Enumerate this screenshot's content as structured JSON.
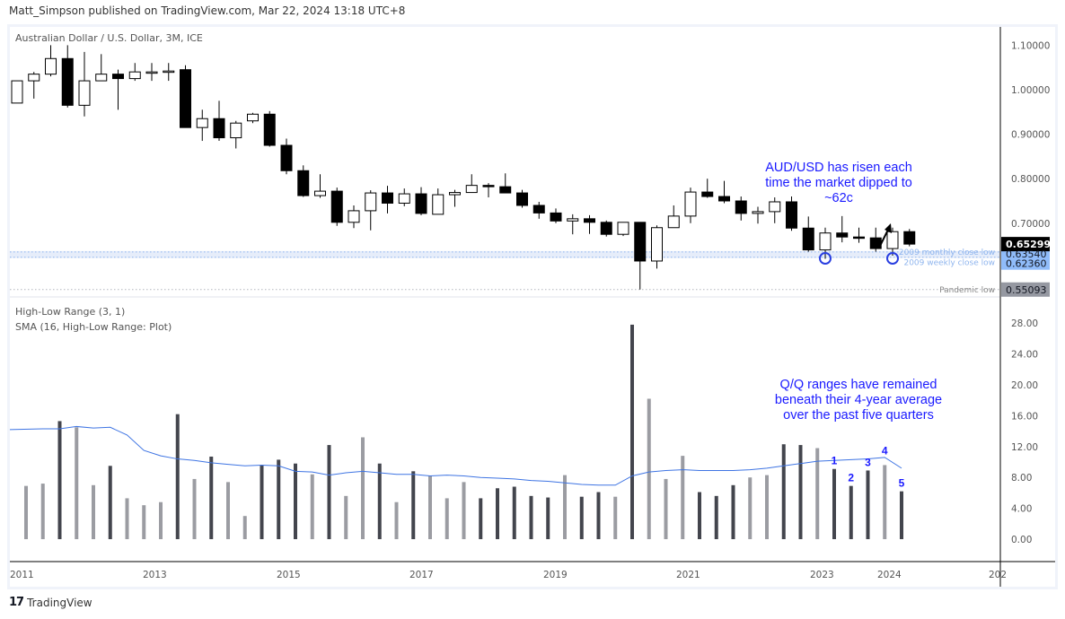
{
  "header": {
    "published_line": "Matt_Simpson published on TradingView.com, Mar 22, 2024 13:18 UTC+8"
  },
  "footer": {
    "brand": "TradingView",
    "logo_glyph": "17"
  },
  "colors": {
    "candle_up_fill": "#ffffff",
    "candle_down_fill": "#000000",
    "candle_stroke": "#000000",
    "hist_dark": "#43454d",
    "hist_light": "#9b9ca2",
    "sma_line": "#3e74e3",
    "annotation_text": "#1a1aff",
    "zone_line": "#8fb5ee",
    "zone_fill": "#e6edfa",
    "label_last": "#000000",
    "label_zone": "#90bcfa",
    "label_pandemic": "#9598a1"
  },
  "chart_data": [
    {
      "type": "candlestick",
      "title": "Australian Dollar / U.S. Dollar, 3M, ICE",
      "xlabel": "",
      "ylabel": "",
      "ylim": [
        0.53,
        1.13
      ],
      "grid": false,
      "y_ticks": [
        "1.10000",
        "1.00000",
        "0.90000",
        "0.80000",
        "0.70000"
      ],
      "x_ticks": [
        "2011",
        "2013",
        "2015",
        "2017",
        "2019",
        "2021",
        "2023",
        "2024",
        "202"
      ],
      "price_labels": [
        {
          "name": "last",
          "value": "0.65299"
        },
        {
          "name": "2009 monthly close low",
          "value": "0.63540"
        },
        {
          "name": "2009 weekly close low",
          "value": "0.62360"
        },
        {
          "name": "Pandemic low",
          "value": "0.55093"
        }
      ],
      "horizontal_lines": [
        {
          "label": "2009 monthly close low",
          "value": 0.6354
        },
        {
          "label": "2009 weekly close low",
          "value": 0.6236
        },
        {
          "label": "Pandemic low",
          "value": 0.5509
        }
      ],
      "annotation": "AUD/USD has risen each time the market dipped to ~62c",
      "candles": [
        {
          "q": "2010Q4",
          "o": 0.97,
          "h": 1.02,
          "l": 0.97,
          "c": 1.02
        },
        {
          "q": "2011Q1",
          "o": 1.02,
          "h": 1.04,
          "l": 0.98,
          "c": 1.035
        },
        {
          "q": "2011Q2",
          "o": 1.035,
          "h": 1.1,
          "l": 1.03,
          "c": 1.07
        },
        {
          "q": "2011Q3",
          "o": 1.07,
          "h": 1.1,
          "l": 0.96,
          "c": 0.965
        },
        {
          "q": "2011Q4",
          "o": 0.965,
          "h": 1.085,
          "l": 0.94,
          "c": 1.02
        },
        {
          "q": "2012Q1",
          "o": 1.02,
          "h": 1.08,
          "l": 1.02,
          "c": 1.035
        },
        {
          "q": "2012Q2",
          "o": 1.035,
          "h": 1.045,
          "l": 0.955,
          "c": 1.025
        },
        {
          "q": "2012Q3",
          "o": 1.025,
          "h": 1.06,
          "l": 1.02,
          "c": 1.04
        },
        {
          "q": "2012Q4",
          "o": 1.04,
          "h": 1.06,
          "l": 1.02,
          "c": 1.04
        },
        {
          "q": "2013Q1",
          "o": 1.04,
          "h": 1.06,
          "l": 1.02,
          "c": 1.042
        },
        {
          "q": "2013Q2",
          "o": 1.045,
          "h": 1.055,
          "l": 0.915,
          "c": 0.915
        },
        {
          "q": "2013Q3",
          "o": 0.915,
          "h": 0.955,
          "l": 0.885,
          "c": 0.935
        },
        {
          "q": "2013Q4",
          "o": 0.935,
          "h": 0.975,
          "l": 0.885,
          "c": 0.892
        },
        {
          "q": "2014Q1",
          "o": 0.892,
          "h": 0.93,
          "l": 0.868,
          "c": 0.925
        },
        {
          "q": "2014Q2",
          "o": 0.93,
          "h": 0.948,
          "l": 0.925,
          "c": 0.945
        },
        {
          "q": "2014Q3",
          "o": 0.945,
          "h": 0.952,
          "l": 0.872,
          "c": 0.875
        },
        {
          "q": "2014Q4",
          "o": 0.875,
          "h": 0.89,
          "l": 0.81,
          "c": 0.818
        },
        {
          "q": "2015Q1",
          "o": 0.818,
          "h": 0.83,
          "l": 0.759,
          "c": 0.762
        },
        {
          "q": "2015Q2",
          "o": 0.762,
          "h": 0.81,
          "l": 0.757,
          "c": 0.772
        },
        {
          "q": "2015Q3",
          "o": 0.772,
          "h": 0.78,
          "l": 0.694,
          "c": 0.702
        },
        {
          "q": "2015Q4",
          "o": 0.702,
          "h": 0.74,
          "l": 0.689,
          "c": 0.728
        },
        {
          "q": "2016Q1",
          "o": 0.728,
          "h": 0.774,
          "l": 0.684,
          "c": 0.768
        },
        {
          "q": "2016Q2",
          "o": 0.768,
          "h": 0.784,
          "l": 0.722,
          "c": 0.745
        },
        {
          "q": "2016Q3",
          "o": 0.745,
          "h": 0.778,
          "l": 0.738,
          "c": 0.766
        },
        {
          "q": "2016Q4",
          "o": 0.766,
          "h": 0.781,
          "l": 0.718,
          "c": 0.722
        },
        {
          "q": "2017Q1",
          "o": 0.72,
          "h": 0.778,
          "l": 0.72,
          "c": 0.764
        },
        {
          "q": "2017Q2",
          "o": 0.764,
          "h": 0.775,
          "l": 0.737,
          "c": 0.769
        },
        {
          "q": "2017Q3",
          "o": 0.769,
          "h": 0.81,
          "l": 0.775,
          "c": 0.785
        },
        {
          "q": "2017Q4",
          "o": 0.785,
          "h": 0.79,
          "l": 0.758,
          "c": 0.782
        },
        {
          "q": "2018Q1",
          "o": 0.782,
          "h": 0.812,
          "l": 0.77,
          "c": 0.768
        },
        {
          "q": "2018Q2",
          "o": 0.768,
          "h": 0.775,
          "l": 0.735,
          "c": 0.74
        },
        {
          "q": "2018Q3",
          "o": 0.74,
          "h": 0.748,
          "l": 0.71,
          "c": 0.723
        },
        {
          "q": "2018Q4",
          "o": 0.723,
          "h": 0.733,
          "l": 0.7,
          "c": 0.705
        },
        {
          "q": "2019Q1",
          "o": 0.705,
          "h": 0.72,
          "l": 0.675,
          "c": 0.71
        },
        {
          "q": "2019Q2",
          "o": 0.71,
          "h": 0.718,
          "l": 0.676,
          "c": 0.702
        },
        {
          "q": "2019Q3",
          "o": 0.702,
          "h": 0.706,
          "l": 0.67,
          "c": 0.675
        },
        {
          "q": "2019Q4",
          "o": 0.675,
          "h": 0.702,
          "l": 0.671,
          "c": 0.702
        },
        {
          "q": "2020Q1",
          "o": 0.702,
          "h": 0.702,
          "l": 0.551,
          "c": 0.615
        },
        {
          "q": "2020Q2",
          "o": 0.615,
          "h": 0.695,
          "l": 0.598,
          "c": 0.69
        },
        {
          "q": "2020Q3",
          "o": 0.69,
          "h": 0.74,
          "l": 0.69,
          "c": 0.716
        },
        {
          "q": "2020Q4",
          "o": 0.716,
          "h": 0.78,
          "l": 0.7,
          "c": 0.77
        },
        {
          "q": "2021Q1",
          "o": 0.77,
          "h": 0.8,
          "l": 0.757,
          "c": 0.76
        },
        {
          "q": "2021Q2",
          "o": 0.76,
          "h": 0.795,
          "l": 0.745,
          "c": 0.75
        },
        {
          "q": "2021Q3",
          "o": 0.75,
          "h": 0.76,
          "l": 0.706,
          "c": 0.722
        },
        {
          "q": "2021Q4",
          "o": 0.722,
          "h": 0.737,
          "l": 0.699,
          "c": 0.726
        },
        {
          "q": "2022Q1",
          "o": 0.726,
          "h": 0.758,
          "l": 0.7,
          "c": 0.748
        },
        {
          "q": "2022Q2",
          "o": 0.748,
          "h": 0.76,
          "l": 0.683,
          "c": 0.689
        },
        {
          "q": "2022Q3",
          "o": 0.689,
          "h": 0.715,
          "l": 0.636,
          "c": 0.64
        },
        {
          "q": "2022Q4",
          "o": 0.64,
          "h": 0.69,
          "l": 0.62,
          "c": 0.678
        },
        {
          "q": "2023Q1",
          "o": 0.678,
          "h": 0.716,
          "l": 0.657,
          "c": 0.669
        },
        {
          "q": "2023Q2",
          "o": 0.669,
          "h": 0.69,
          "l": 0.656,
          "c": 0.667
        },
        {
          "q": "2023Q3",
          "o": 0.667,
          "h": 0.69,
          "l": 0.636,
          "c": 0.643
        },
        {
          "q": "2023Q4",
          "o": 0.643,
          "h": 0.69,
          "l": 0.627,
          "c": 0.681
        },
        {
          "q": "2024Q1",
          "o": 0.681,
          "h": 0.687,
          "l": 0.648,
          "c": 0.653
        }
      ]
    },
    {
      "type": "bar",
      "title": "High-Low Range (3, 1)",
      "subtitle": "SMA (16, High-Low Range: Plot)",
      "ylim": [
        -1.5,
        31
      ],
      "y_ticks": [
        "28.00",
        "24.00",
        "20.00",
        "16.00",
        "12.00",
        "8.00",
        "4.00",
        "0.00"
      ],
      "annotation": "Q/Q ranges have remained beneath their 4-year average over the past five quarters",
      "highlight_labels": [
        "1",
        "2",
        "3",
        "4",
        "5"
      ],
      "series": [
        {
          "name": "High-Low Range",
          "values": [
            6.9,
            7.2,
            15.3,
            14.5,
            7.0,
            9.5,
            5.3,
            4.4,
            4.8,
            16.2,
            7.8,
            10.7,
            7.4,
            3.0,
            9.6,
            10.3,
            9.8,
            8.4,
            12.2,
            5.6,
            13.2,
            9.8,
            4.8,
            8.8,
            8.2,
            5.3,
            7.4,
            5.3,
            6.6,
            6.8,
            5.6,
            5.4,
            8.3,
            5.5,
            6.1,
            5.5,
            27.8,
            18.2,
            7.8,
            10.8,
            6.1,
            5.6,
            7.0,
            8.0,
            8.3,
            12.3,
            12.2,
            11.8,
            9.1,
            6.9,
            8.9,
            9.6,
            6.2
          ],
          "colors": [
            "light",
            "light",
            "dark",
            "light",
            "light",
            "dark",
            "light",
            "light",
            "light",
            "dark",
            "light",
            "dark",
            "light",
            "light",
            "dark",
            "dark",
            "dark",
            "light",
            "dark",
            "light",
            "light",
            "dark",
            "light",
            "dark",
            "light",
            "light",
            "light",
            "dark",
            "dark",
            "dark",
            "dark",
            "dark",
            "light",
            "dark",
            "dark",
            "light",
            "dark",
            "light",
            "light",
            "light",
            "dark",
            "dark",
            "dark",
            "light",
            "light",
            "dark",
            "dark",
            "light",
            "dark",
            "dark",
            "dark",
            "light",
            "dark"
          ]
        },
        {
          "name": "SMA 16",
          "values": [
            14.2,
            14.3,
            14.3,
            14.6,
            14.4,
            14.5,
            13.5,
            11.5,
            10.8,
            10.4,
            10.2,
            9.9,
            9.7,
            9.5,
            9.6,
            9.5,
            8.8,
            8.7,
            8.3,
            8.6,
            8.8,
            8.6,
            8.4,
            8.4,
            8.2,
            8.3,
            8.2,
            8.0,
            7.9,
            7.8,
            7.6,
            7.5,
            7.3,
            7.1,
            7.0,
            7.0,
            8.2,
            8.7,
            8.9,
            9.0,
            8.9,
            8.9,
            8.9,
            9.0,
            9.2,
            9.5,
            9.8,
            10.1,
            10.2,
            10.3,
            10.4,
            10.6,
            9.2
          ]
        }
      ]
    }
  ]
}
